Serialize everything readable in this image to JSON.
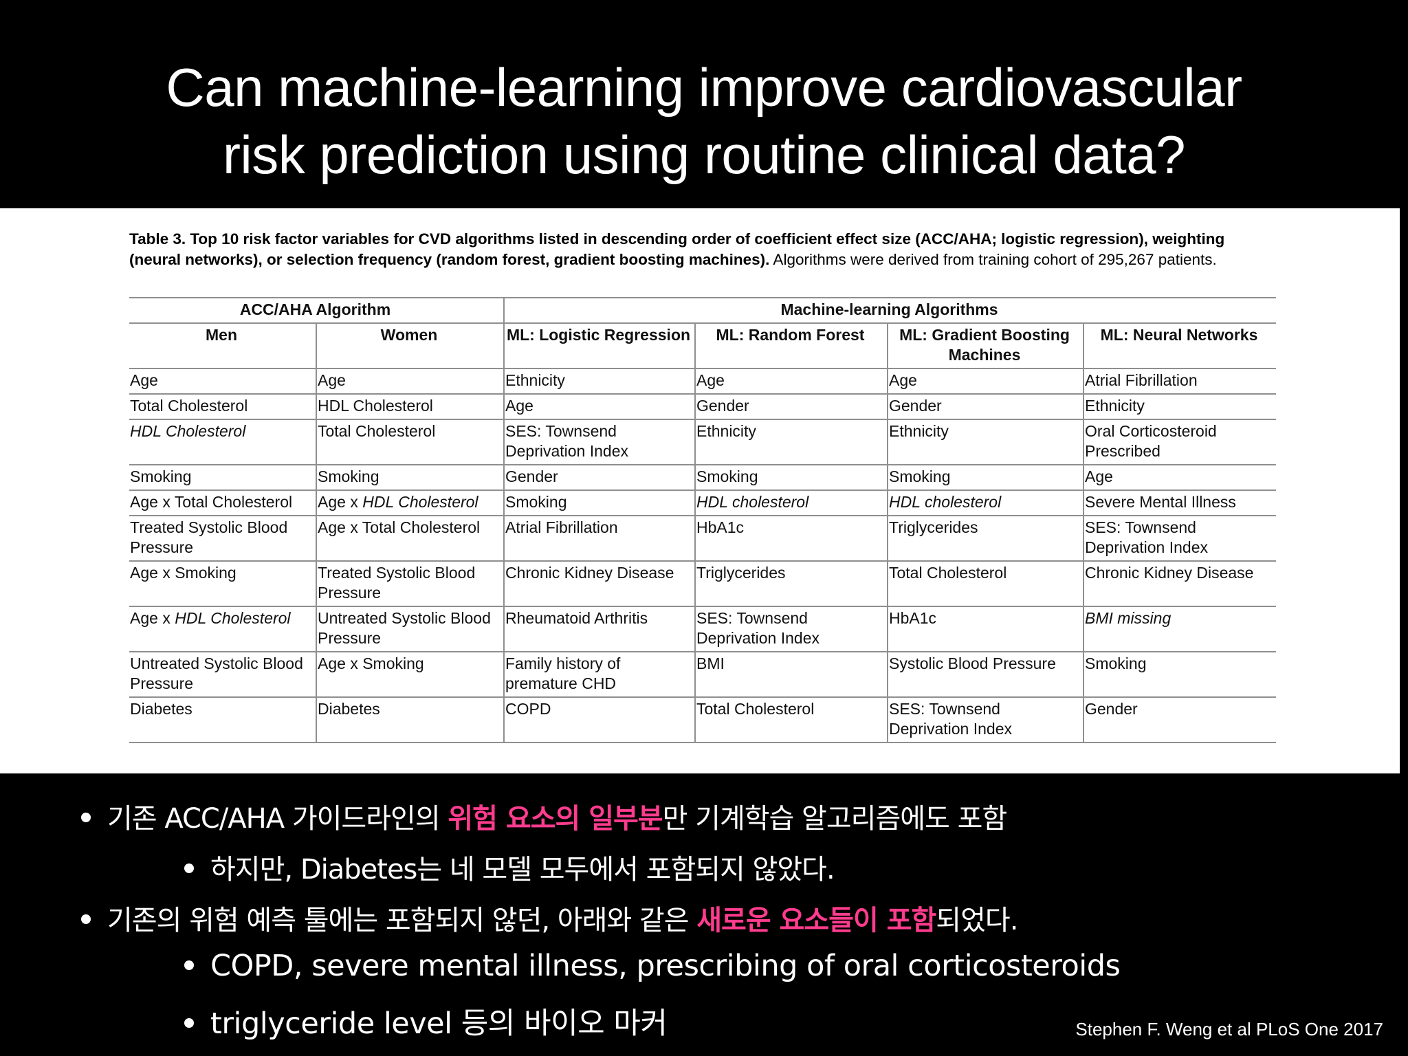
{
  "title": {
    "line1": "Can machine-learning improve cardiovascular",
    "line2": "risk prediction using routine clinical data?"
  },
  "caption": {
    "bold": "Table 3.  Top 10 risk factor variables for CVD algorithms listed in descending order of coefficient effect size (ACC/AHA; logistic regression), weighting (neural networks), or selection frequency (random forest, gradient boosting machines).",
    "normal": " Algorithms were derived from training cohort of 295,267 patients."
  },
  "table": {
    "group_acc": "ACC/AHA Algorithm",
    "group_ml": "Machine-learning Algorithms",
    "columns": [
      "Men",
      "Women",
      "ML: Logistic Regression",
      "ML: Random Forest",
      "ML: Gradient Boosting Machines",
      "ML: Neural Networks"
    ],
    "rows": [
      [
        "Age",
        "Age",
        "Ethnicity",
        "Age",
        "Age",
        "Atrial Fibrillation"
      ],
      [
        "Total Cholesterol",
        "HDL Cholesterol",
        "Age",
        "Gender",
        "Gender",
        "Ethnicity"
      ],
      [
        "HDL Cholesterol",
        "Total Cholesterol",
        "SES: Townsend Deprivation Index",
        "Ethnicity",
        "Ethnicity",
        "Oral Corticosteroid Prescribed"
      ],
      [
        "Smoking",
        "Smoking",
        "Gender",
        "Smoking",
        "Smoking",
        "Age"
      ],
      [
        "Age x Total Cholesterol",
        "Age x HDL Cholesterol",
        "Smoking",
        "HDL cholesterol",
        "HDL cholesterol",
        "Severe Mental Illness"
      ],
      [
        "Treated Systolic Blood Pressure",
        "Age x Total Cholesterol",
        "Atrial Fibrillation",
        "HbA1c",
        "Triglycerides",
        "SES: Townsend Deprivation Index"
      ],
      [
        "Age x Smoking",
        "Treated Systolic Blood Pressure",
        "Chronic Kidney Disease",
        "Triglycerides",
        "Total Cholesterol",
        "Chronic Kidney Disease"
      ],
      [
        "Age x HDL Cholesterol",
        "Untreated Systolic Blood Pressure",
        "Rheumatoid Arthritis",
        "SES: Townsend Deprivation Index",
        "HbA1c",
        "BMI missing"
      ],
      [
        "Untreated Systolic Blood Pressure",
        "Age x Smoking",
        "Family history of premature CHD",
        "BMI",
        "Systolic Blood Pressure",
        "Smoking"
      ],
      [
        "Diabetes",
        "Diabetes",
        "COPD",
        "Total Cholesterol",
        "SES: Townsend Deprivation Index",
        "Gender"
      ]
    ]
  },
  "bullets": {
    "b1_pre": "기존 ACC/AHA 가이드라인의 ",
    "b1_hl": "위험 요소의 일부분",
    "b1_post": "만 기계학습 알고리즘에도 포함",
    "b2": "하지만, Diabetes는 네 모델 모두에서 포함되지 않았다.",
    "b3_pre": "기존의 위험 예측 툴에는 포함되지 않던, 아래와 같은 ",
    "b3_hl": "새로운 요소들이 포함",
    "b3_post": "되었다.",
    "b4": "COPD, severe mental illness, prescribing of oral corticosteroids",
    "b5": "triglyceride level 등의 바이오 마커"
  },
  "citation": "Stephen F. Weng et al PLoS One 2017",
  "colors": {
    "highlight": "#ff3c8e",
    "background": "#000000",
    "panel": "#ffffff"
  }
}
